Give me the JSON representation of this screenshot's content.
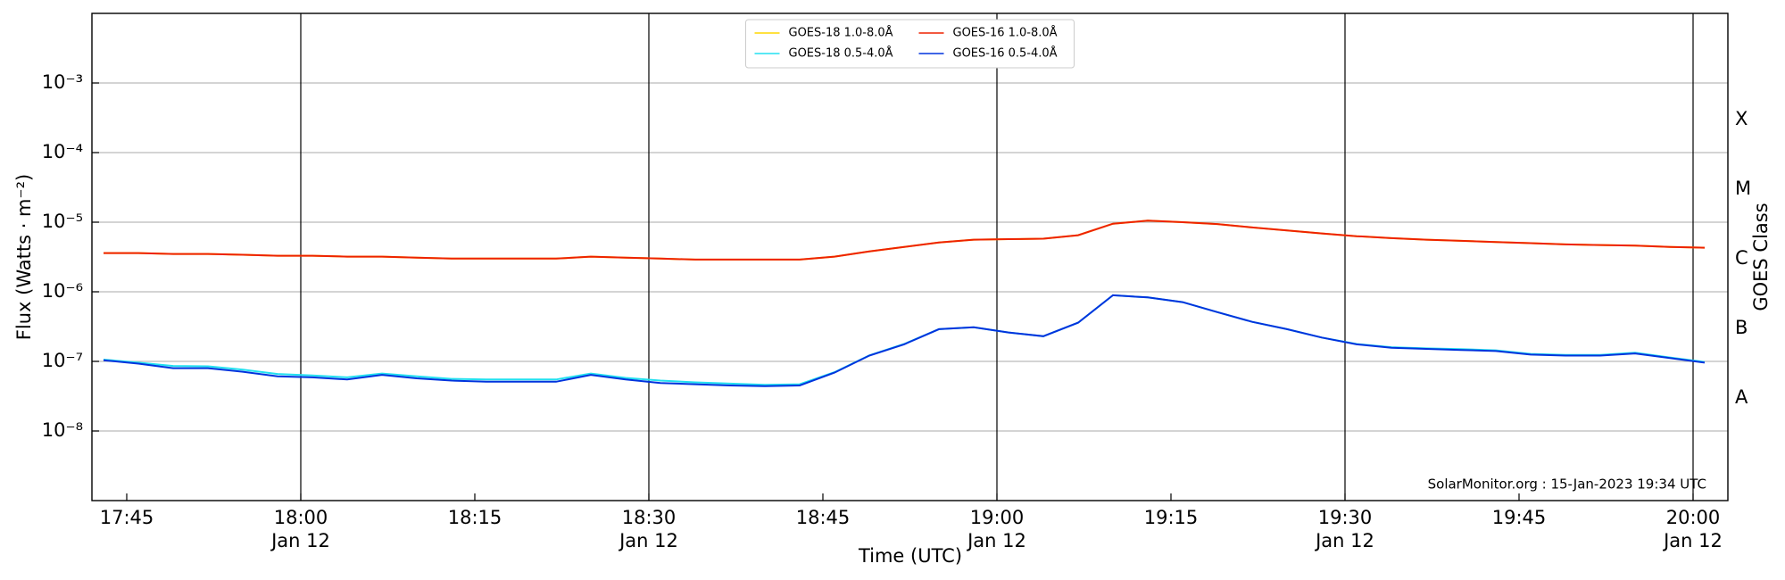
{
  "chart_data": {
    "type": "line",
    "xlabel": "Time (UTC)",
    "ylabel": "Flux (Watts · m⁻²)",
    "y2label": "GOES Class",
    "annotation": "SolarMonitor.org : 15-Jan-2023 19:34 UTC",
    "log_y": true,
    "grid": true,
    "legend": "upper center",
    "x": [
      "17:43",
      "17:46",
      "17:49",
      "17:52",
      "17:55",
      "17:58",
      "18:01",
      "18:04",
      "18:07",
      "18:10",
      "18:13",
      "18:16",
      "18:19",
      "18:22",
      "18:25",
      "18:28",
      "18:31",
      "18:34",
      "18:37",
      "18:40",
      "18:43",
      "18:46",
      "18:49",
      "18:52",
      "18:55",
      "18:58",
      "19:01",
      "19:04",
      "19:07",
      "19:10",
      "19:13",
      "19:16",
      "19:19",
      "19:22",
      "19:25",
      "19:28",
      "19:31",
      "19:34",
      "19:37",
      "19:40",
      "19:43",
      "19:46",
      "19:49",
      "19:52",
      "19:55",
      "19:58",
      "20:01"
    ],
    "xlim": [
      "17:42",
      "20:03"
    ],
    "xticks": [
      "17:45",
      {
        "value": "18:00",
        "label": "18:00\nJan 12"
      },
      "18:15",
      {
        "value": "18:30",
        "label": "18:30\nJan 12"
      },
      "18:45",
      {
        "value": "19:00",
        "label": "19:00\nJan 12"
      },
      "19:15",
      {
        "value": "19:30",
        "label": "19:30\nJan 12"
      },
      "19:45",
      {
        "value": "20:00",
        "label": "20:00\nJan 12"
      }
    ],
    "ylim": [
      1e-09,
      0.01
    ],
    "yticks": [
      {
        "value": 1e-08,
        "label": "10⁻⁸"
      },
      {
        "value": 1e-07,
        "label": "10⁻⁷"
      },
      {
        "value": 1e-06,
        "label": "10⁻⁶"
      },
      {
        "value": 1e-05,
        "label": "10⁻⁵"
      },
      {
        "value": 0.0001,
        "label": "10⁻⁴"
      },
      {
        "value": 0.001,
        "label": "10⁻³"
      }
    ],
    "y2lim": [
      1e-09,
      0.01
    ],
    "y2ticks": [
      {
        "value": 3e-08,
        "label": "A"
      },
      {
        "value": 3e-07,
        "label": "B"
      },
      {
        "value": 3e-06,
        "label": "C"
      },
      {
        "value": 3e-05,
        "label": "M"
      },
      {
        "value": 0.0003,
        "label": "X"
      }
    ],
    "series": [
      {
        "name": "GOES-18 1.0-8.0Å",
        "color": "#ffd700",
        "values": [
          3.6e-06,
          3.6e-06,
          3.5e-06,
          3.5e-06,
          3.4e-06,
          3.3e-06,
          3.3e-06,
          3.2e-06,
          3.2e-06,
          3.1e-06,
          3e-06,
          3e-06,
          3e-06,
          3e-06,
          3.2e-06,
          3.1e-06,
          3e-06,
          2.9e-06,
          2.9e-06,
          2.9e-06,
          2.9e-06,
          3.2e-06,
          3.8e-06,
          4.4e-06,
          5.1e-06,
          5.6e-06,
          5.7e-06,
          5.8e-06,
          6.5e-06,
          9.5e-06,
          1.05e-05,
          1e-05,
          9.4e-06,
          8.4e-06,
          7.6e-06,
          6.9e-06,
          6.3e-06,
          5.9e-06,
          5.6e-06,
          5.4e-06,
          5.2e-06,
          5e-06,
          4.8e-06,
          4.7e-06,
          4.6e-06,
          4.4e-06,
          4.3e-06
        ]
      },
      {
        "name": "GOES-18 0.5-4.0Å",
        "color": "#22e0f0",
        "values": [
          1.06e-07,
          9.6e-08,
          8.6e-08,
          8.5e-08,
          7.6e-08,
          6.6e-08,
          6.3e-08,
          5.9e-08,
          6.7e-08,
          6.1e-08,
          5.6e-08,
          5.5e-08,
          5.5e-08,
          5.5e-08,
          6.7e-08,
          5.8e-08,
          5.3e-08,
          5e-08,
          4.8e-08,
          4.6e-08,
          4.7e-08,
          7e-08,
          1.22e-07,
          1.78e-07,
          2.9e-07,
          3.1e-07,
          2.6e-07,
          2.3e-07,
          3.6e-07,
          8.9e-07,
          8.3e-07,
          7.1e-07,
          5.1e-07,
          3.7e-07,
          2.9e-07,
          2.2e-07,
          1.78e-07,
          1.6e-07,
          1.54e-07,
          1.5e-07,
          1.44e-07,
          1.28e-07,
          1.24e-07,
          1.24e-07,
          1.33e-07,
          1.14e-07,
          9.8e-08
        ]
      },
      {
        "name": "GOES-16 1.0-8.0Å",
        "color": "#ee2200",
        "values": [
          3.6e-06,
          3.6e-06,
          3.5e-06,
          3.5e-06,
          3.4e-06,
          3.3e-06,
          3.3e-06,
          3.2e-06,
          3.2e-06,
          3.1e-06,
          3e-06,
          3e-06,
          3e-06,
          3e-06,
          3.2e-06,
          3.1e-06,
          3e-06,
          2.9e-06,
          2.9e-06,
          2.9e-06,
          2.9e-06,
          3.2e-06,
          3.8e-06,
          4.4e-06,
          5.1e-06,
          5.6e-06,
          5.7e-06,
          5.8e-06,
          6.5e-06,
          9.5e-06,
          1.05e-05,
          1e-05,
          9.4e-06,
          8.4e-06,
          7.6e-06,
          6.9e-06,
          6.3e-06,
          5.9e-06,
          5.6e-06,
          5.4e-06,
          5.2e-06,
          5e-06,
          4.8e-06,
          4.7e-06,
          4.6e-06,
          4.4e-06,
          4.3e-06
        ]
      },
      {
        "name": "GOES-16 0.5-4.0Å",
        "color": "#0033dd",
        "values": [
          1.04e-07,
          9.3e-08,
          8e-08,
          8e-08,
          7.1e-08,
          6.1e-08,
          5.9e-08,
          5.5e-08,
          6.4e-08,
          5.7e-08,
          5.3e-08,
          5.1e-08,
          5.1e-08,
          5.1e-08,
          6.4e-08,
          5.5e-08,
          4.9e-08,
          4.7e-08,
          4.5e-08,
          4.4e-08,
          4.5e-08,
          6.9e-08,
          1.21e-07,
          1.76e-07,
          2.9e-07,
          3.1e-07,
          2.6e-07,
          2.3e-07,
          3.6e-07,
          8.9e-07,
          8.3e-07,
          7.1e-07,
          5.1e-07,
          3.7e-07,
          2.9e-07,
          2.2e-07,
          1.76e-07,
          1.57e-07,
          1.51e-07,
          1.46e-07,
          1.41e-07,
          1.25e-07,
          1.21e-07,
          1.21e-07,
          1.3e-07,
          1.12e-07,
          9.6e-08
        ]
      }
    ]
  }
}
